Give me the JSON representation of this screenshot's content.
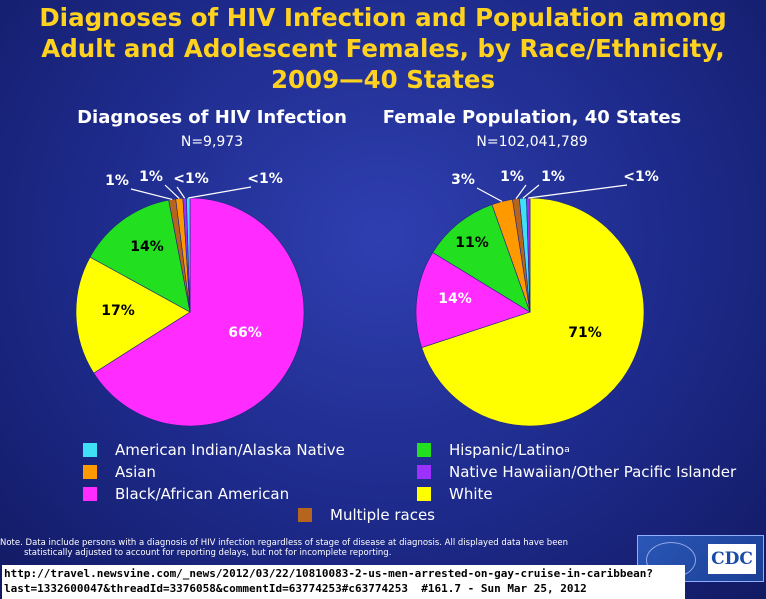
{
  "title_lines": [
    "Diagnoses of HIV Infection and Population among",
    "Adult and Adolescent Females, by Race/Ethnicity,",
    "2009—40 States"
  ],
  "chart_data": [
    {
      "type": "pie",
      "title": "Diagnoses of HIV Infection",
      "subtitle": "N=9,973",
      "slices": [
        {
          "category": "Black/African American",
          "value": 66,
          "label": "66%",
          "color": "#ff2bff"
        },
        {
          "category": "White",
          "value": 17,
          "label": "17%",
          "color": "#ffff00"
        },
        {
          "category": "Hispanic/Latino",
          "value": 14,
          "label": "14%",
          "color": "#22e01f"
        },
        {
          "category": "Multiple races",
          "value": 1,
          "label": "1%",
          "color": "#b5651d"
        },
        {
          "category": "Asian",
          "value": 1,
          "label": "1%",
          "color": "#ff9900"
        },
        {
          "category": "Native Hawaiian/Other Pacific Islander",
          "value": 0.5,
          "label": "<1%",
          "color": "#9b30ff"
        },
        {
          "category": "American Indian/Alaska Native",
          "value": 0.5,
          "label": "<1%",
          "color": "#3fe0f5"
        }
      ]
    },
    {
      "type": "pie",
      "title": "Female Population, 40 States",
      "subtitle": "N=102,041,789",
      "slices": [
        {
          "category": "White",
          "value": 71,
          "label": "71%",
          "color": "#ffff00"
        },
        {
          "category": "Black/African American",
          "value": 14,
          "label": "14%",
          "color": "#ff2bff"
        },
        {
          "category": "Hispanic/Latino",
          "value": 11,
          "label": "11%",
          "color": "#22e01f"
        },
        {
          "category": "Asian",
          "value": 3,
          "label": "3%",
          "color": "#ff9900"
        },
        {
          "category": "Multiple races",
          "value": 1,
          "label": "1%",
          "color": "#b5651d"
        },
        {
          "category": "American Indian/Alaska Native",
          "value": 1,
          "label": "1%",
          "color": "#3fe0f5"
        },
        {
          "category": "Native Hawaiian/Other Pacific Islander",
          "value": 0.5,
          "label": "<1%",
          "color": "#9b30ff"
        }
      ]
    }
  ],
  "legend": [
    {
      "label": "American Indian/Alaska Native",
      "color": "#3fe0f5"
    },
    {
      "label": "Asian",
      "color": "#ff9900"
    },
    {
      "label": "Black/African American",
      "color": "#ff2bff"
    },
    {
      "label": "Hispanic/Latino",
      "sup": "a",
      "color": "#22e01f"
    },
    {
      "label": "Native Hawaiian/Other Pacific Islander",
      "color": "#9b30ff"
    },
    {
      "label": "White",
      "color": "#ffff00"
    },
    {
      "label": "Multiple races",
      "color": "#b5651d"
    }
  ],
  "note_lines": [
    "Note. Data include persons with a diagnosis of HIV infection regardless of stage of disease at diagnosis. All displayed data have been",
    "statistically adjusted to account for reporting delays, but not for incomplete reporting."
  ],
  "logo_text": "CDC",
  "url_lines": [
    "http://travel.newsvine.com/_news/2012/03/22/10810083-2-us-men-arrested-on-gay-cruise-in-caribbean?",
    "last=1332600047&threadId=3376058&commentId=63774253#c63774253  #161.7 - Sun Mar 25, 2012"
  ]
}
